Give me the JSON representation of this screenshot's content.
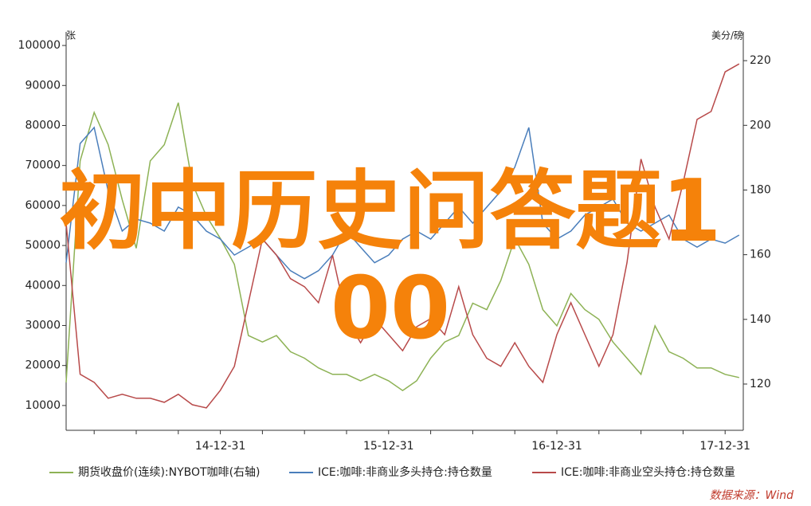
{
  "chart_data": {
    "type": "line",
    "y_unit": "张",
    "y2_unit": "美分/磅",
    "overlay_text": "初中历史问答题100",
    "source": "数据来源：Wind",
    "categories": [
      null,
      null,
      null,
      null,
      null,
      null,
      null,
      null,
      null,
      null,
      null,
      "14-12-31",
      null,
      null,
      null,
      null,
      null,
      null,
      null,
      null,
      null,
      null,
      null,
      "15-12-31",
      null,
      null,
      null,
      null,
      null,
      null,
      null,
      null,
      null,
      null,
      null,
      "16-12-31",
      null,
      null,
      null,
      null,
      null,
      null,
      null,
      null,
      null,
      null,
      null,
      "17-12-31",
      null
    ],
    "ylim": [
      3800,
      103400
    ],
    "yticks": [
      10000,
      20000,
      30000,
      40000,
      50000,
      60000,
      70000,
      80000,
      90000,
      100000
    ],
    "y2lim": [
      105.7,
      228.9
    ],
    "y2ticks": [
      120,
      140,
      160,
      180,
      200,
      220
    ],
    "series": [
      {
        "name": "期货收盘价(连续):NYBOT咖啡(右轴)",
        "color": "#8db255",
        "axis": "y2",
        "values": [
          120.5,
          189,
          204,
          194,
          177,
          162,
          189,
          194,
          207,
          182,
          172,
          165,
          157,
          135,
          133,
          135,
          130,
          128,
          125,
          123,
          123,
          121,
          123,
          121,
          118,
          121,
          128,
          133,
          135,
          145,
          143,
          152,
          165,
          157,
          143,
          138,
          148,
          143,
          140,
          133,
          128,
          123,
          138,
          130,
          128,
          125,
          125,
          123,
          122
        ]
      },
      {
        "name": "ICE:咖啡:非商业多头持仓:持仓数量",
        "color": "#4a7ebb",
        "values": [
          45700,
          75500,
          79500,
          63600,
          53600,
          56600,
          55600,
          53600,
          59600,
          57600,
          53600,
          51600,
          47600,
          49600,
          51600,
          47600,
          43700,
          41700,
          43700,
          47600,
          53600,
          49600,
          45700,
          47600,
          51600,
          53600,
          51600,
          55600,
          59600,
          55600,
          59600,
          63600,
          69600,
          79500,
          55600,
          51600,
          53600,
          57600,
          59600,
          61600,
          55600,
          53600,
          55600,
          57600,
          51600,
          49600,
          51600,
          50600,
          52600
        ]
      },
      {
        "name": "ICE:咖啡:非商业空头持仓:持仓数量",
        "color": "#b84a4a",
        "values": [
          55600,
          17800,
          15800,
          11800,
          12800,
          11800,
          11800,
          10800,
          12800,
          10200,
          9400,
          13800,
          19800,
          35700,
          51600,
          47600,
          41700,
          39700,
          35700,
          47600,
          31700,
          25700,
          31700,
          27700,
          23700,
          29700,
          31700,
          27700,
          39700,
          27700,
          21800,
          19800,
          25700,
          19800,
          15800,
          27700,
          35700,
          27700,
          19800,
          27700,
          45700,
          71600,
          59600,
          51600,
          65600,
          81500,
          83500,
          93400,
          95400
        ]
      }
    ]
  }
}
